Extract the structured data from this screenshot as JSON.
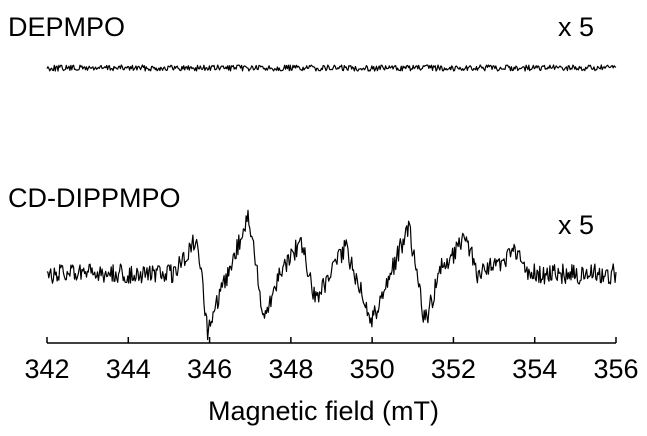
{
  "chart_data": {
    "type": "line",
    "xlabel": "Magnetic field (mT)",
    "xlim": [
      342,
      356
    ],
    "xticks": [
      342,
      344,
      346,
      348,
      350,
      352,
      354,
      356
    ],
    "xtick_labels": [
      "342",
      "344",
      "346",
      "348",
      "350",
      "352",
      "354",
      "356"
    ],
    "grid": false,
    "series": [
      {
        "name": "DEPMPO",
        "scale_label": "x 5",
        "x": [
          342,
          356
        ],
        "values": [
          0,
          0
        ]
      },
      {
        "name": "CD-DIPPMPO",
        "scale_label": "x 5",
        "x": [
          342,
          344.4,
          345.1,
          345.7,
          345.95,
          346.6,
          346.95,
          347.35,
          347.7,
          348.25,
          348.6,
          349.35,
          350.0,
          350.5,
          350.9,
          351.3,
          351.7,
          352.3,
          352.6,
          353.55,
          353.85,
          356
        ],
        "values": [
          0,
          0,
          0,
          0.62,
          -1,
          0.3,
          1,
          -0.78,
          0,
          0.57,
          -0.45,
          0.45,
          -0.8,
          0.1,
          0.82,
          -0.85,
          0.1,
          0.61,
          0,
          0.36,
          0,
          0
        ]
      }
    ]
  }
}
